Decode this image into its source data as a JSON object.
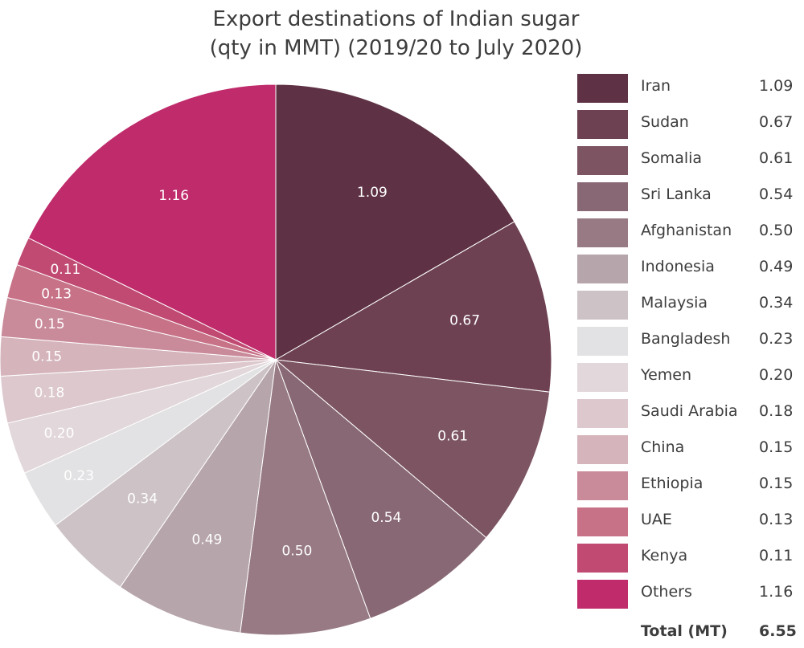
{
  "chart_data": {
    "type": "pie",
    "title": "Export destinations of Indian sugar",
    "subtitle": "(qty in MMT) (2019/20 to July 2020)",
    "categories": [
      "Iran",
      "Sudan",
      "Somalia",
      "Sri Lanka",
      "Afghanistan",
      "Indonesia",
      "Malaysia",
      "Bangladesh",
      "Yemen",
      "Saudi Arabia",
      "China",
      "Ethiopia",
      "UAE",
      "Kenya",
      "Others"
    ],
    "values": [
      1.09,
      0.67,
      0.61,
      0.54,
      0.5,
      0.49,
      0.34,
      0.23,
      0.2,
      0.18,
      0.15,
      0.15,
      0.13,
      0.11,
      1.16
    ],
    "value_labels": [
      "1.09",
      "0.67",
      "0.61",
      "0.54",
      "0.50",
      "0.49",
      "0.34",
      "0.23",
      "0.20",
      "0.18",
      "0.15",
      "0.15",
      "0.13",
      "0.11",
      "1.16"
    ],
    "colors": [
      "#5e3244",
      "#6d4152",
      "#7c5462",
      "#886874",
      "#977a84",
      "#b6a5aa",
      "#cdc3c7",
      "#e2e1e3",
      "#e2d7da",
      "#dcc8cd",
      "#d5b4bc",
      "#c98a9a",
      "#c77287",
      "#c04a72",
      "#bf2b6b"
    ],
    "legend_position": "right",
    "total_label": "Total (MT)",
    "total_value": "6.55"
  }
}
